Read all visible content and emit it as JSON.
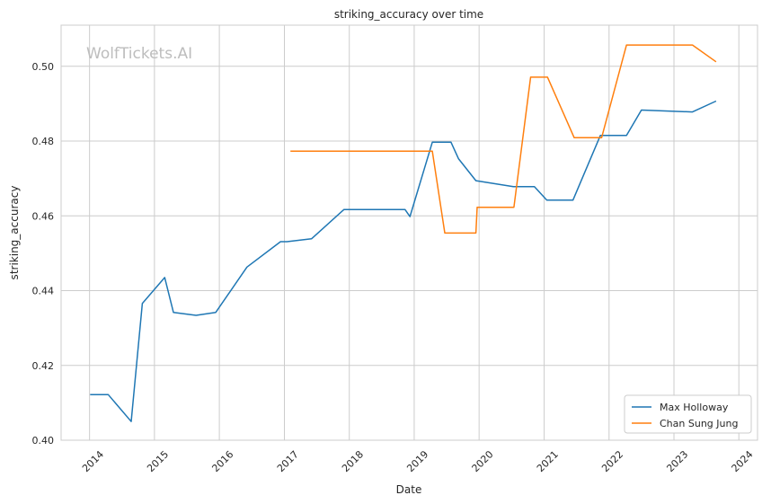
{
  "chart_data": {
    "type": "line",
    "title": "striking_accuracy over time",
    "xlabel": "Date",
    "ylabel": "striking_accuracy",
    "watermark": "WolfTickets.AI",
    "x_ticks": [
      "2014",
      "2015",
      "2016",
      "2017",
      "2018",
      "2019",
      "2020",
      "2021",
      "2022",
      "2023",
      "2024"
    ],
    "y_ticks": [
      "0.40",
      "0.42",
      "0.44",
      "0.46",
      "0.48",
      "0.50"
    ],
    "xlim": [
      "2013-07-25",
      "2024-04-15"
    ],
    "ylim": [
      0.4,
      0.511
    ],
    "grid": true,
    "legend_position": "bottom-right",
    "series": [
      {
        "name": "Max Holloway",
        "color": "#1f77b4",
        "points": [
          [
            "2014-01-04",
            0.4122
          ],
          [
            "2014-04-16",
            0.4122
          ],
          [
            "2014-08-23",
            0.405
          ],
          [
            "2014-10-25",
            0.4366
          ],
          [
            "2015-02-28",
            0.4435
          ],
          [
            "2015-04-18",
            0.4342
          ],
          [
            "2015-08-23",
            0.4334
          ],
          [
            "2015-12-12",
            0.4342
          ],
          [
            "2016-06-04",
            0.4463
          ],
          [
            "2016-12-10",
            0.4531
          ],
          [
            "2017-01-15",
            0.4531
          ],
          [
            "2017-06-03",
            0.4539
          ],
          [
            "2017-12-02",
            0.4617
          ],
          [
            "2018-11-10",
            0.4617
          ],
          [
            "2018-12-08",
            0.4598
          ],
          [
            "2019-04-13",
            0.4797
          ],
          [
            "2019-07-27",
            0.4797
          ],
          [
            "2019-09-07",
            0.4753
          ],
          [
            "2019-12-14",
            0.4694
          ],
          [
            "2020-07-12",
            0.4678
          ],
          [
            "2020-11-07",
            0.4678
          ],
          [
            "2021-01-16",
            0.4642
          ],
          [
            "2021-06-12",
            0.4642
          ],
          [
            "2021-11-13",
            0.4815
          ],
          [
            "2022-04-09",
            0.4815
          ],
          [
            "2022-07-02",
            0.4883
          ],
          [
            "2023-04-15",
            0.4878
          ],
          [
            "2023-08-26",
            0.4907
          ]
        ]
      },
      {
        "name": "Chan Sung Jung",
        "color": "#ff7f0e",
        "points": [
          [
            "2017-02-04",
            0.4773
          ],
          [
            "2019-04-13",
            0.4773
          ],
          [
            "2019-06-22",
            0.4554
          ],
          [
            "2019-12-14",
            0.4554
          ],
          [
            "2019-12-21",
            0.4623
          ],
          [
            "2020-07-15",
            0.4623
          ],
          [
            "2020-10-17",
            0.4971
          ],
          [
            "2021-01-20",
            0.4971
          ],
          [
            "2021-06-19",
            0.4809
          ],
          [
            "2021-11-20",
            0.4809
          ],
          [
            "2022-04-09",
            0.5057
          ],
          [
            "2023-04-15",
            0.5057
          ],
          [
            "2023-08-26",
            0.5012
          ]
        ]
      }
    ]
  }
}
